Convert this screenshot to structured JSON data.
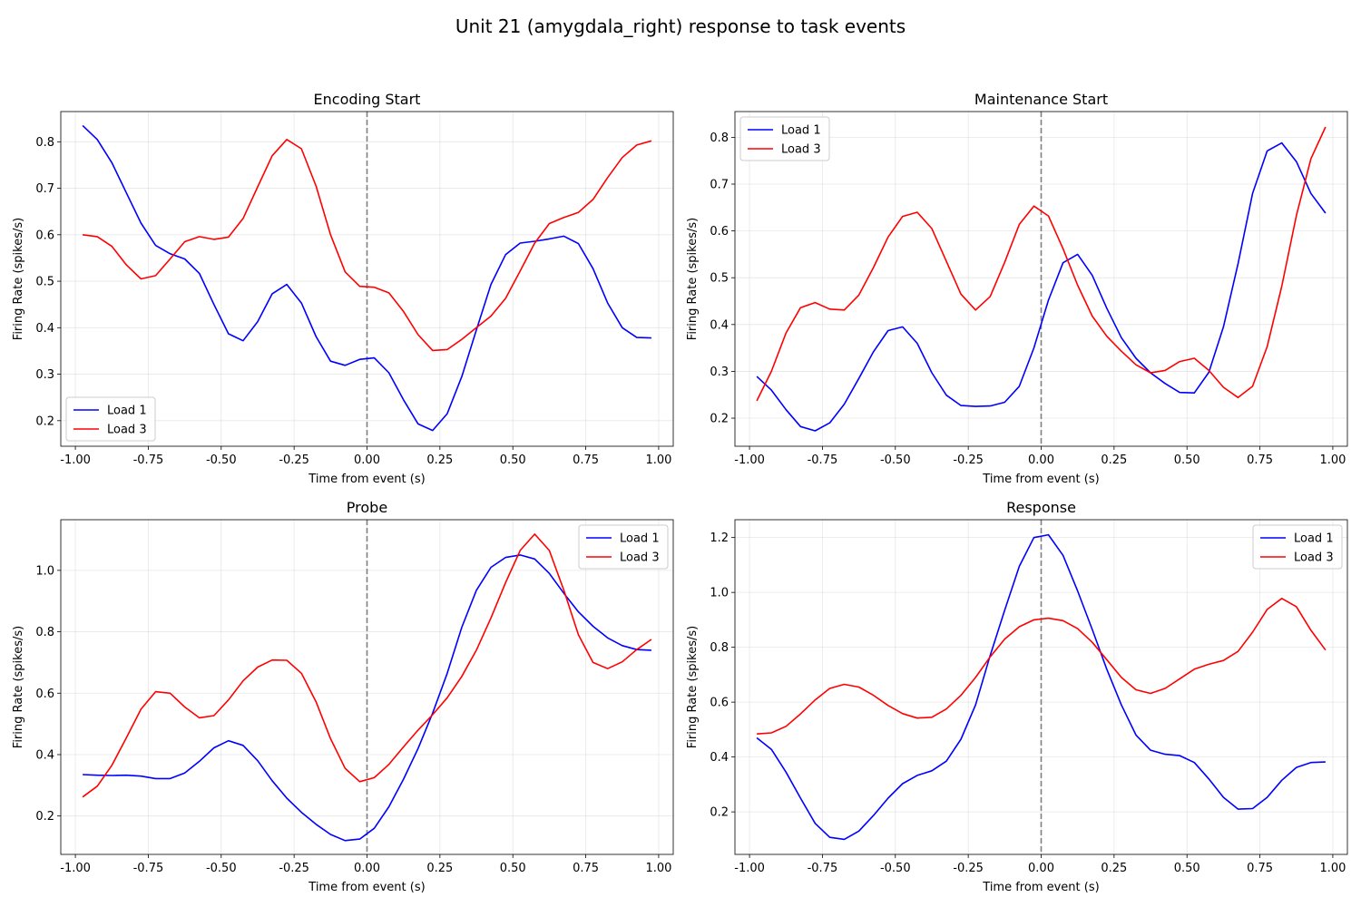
{
  "figure": {
    "title": "Unit 21 (amygdala_right) response to task events"
  },
  "series_colors": {
    "Load 1": "#0000ff",
    "Load 3": "#ff0000"
  },
  "event_line_color": "#808080",
  "chart_data": [
    {
      "type": "line",
      "title": "Encoding Start",
      "xlabel": "Time from event (s)",
      "ylabel": "Firing Rate (spikes/s)",
      "xlim": [
        -1.05,
        1.05
      ],
      "ylim": [
        0.145,
        0.865
      ],
      "xticks": [
        "-1.00",
        "-0.75",
        "-0.50",
        "-0.25",
        "0.00",
        "0.25",
        "0.50",
        "0.75",
        "1.00"
      ],
      "yticks": [
        "0.2",
        "0.3",
        "0.4",
        "0.5",
        "0.6",
        "0.7",
        "0.8"
      ],
      "grid": true,
      "legend": "lower left",
      "event_line_x": 0,
      "x": [
        -0.975,
        -0.925,
        -0.875,
        -0.825,
        -0.775,
        -0.725,
        -0.675,
        -0.625,
        -0.575,
        -0.525,
        -0.475,
        -0.425,
        -0.375,
        -0.325,
        -0.275,
        -0.225,
        -0.175,
        -0.125,
        -0.075,
        -0.025,
        0.025,
        0.075,
        0.125,
        0.175,
        0.225,
        0.275,
        0.325,
        0.375,
        0.425,
        0.475,
        0.525,
        0.575,
        0.625,
        0.675,
        0.725,
        0.775,
        0.825,
        0.875,
        0.925,
        0.975
      ],
      "series": [
        {
          "name": "Load 1",
          "values": [
            0.835,
            0.805,
            0.755,
            0.69,
            0.625,
            0.577,
            0.559,
            0.548,
            0.517,
            0.45,
            0.387,
            0.372,
            0.413,
            0.473,
            0.493,
            0.453,
            0.381,
            0.328,
            0.319,
            0.332,
            0.335,
            0.303,
            0.245,
            0.193,
            0.179,
            0.215,
            0.295,
            0.395,
            0.493,
            0.557,
            0.582,
            0.586,
            0.591,
            0.597,
            0.581,
            0.527,
            0.453,
            0.4,
            0.379,
            0.378
          ]
        },
        {
          "name": "Load 3",
          "values": [
            0.6,
            0.596,
            0.575,
            0.535,
            0.505,
            0.512,
            0.548,
            0.585,
            0.596,
            0.59,
            0.595,
            0.635,
            0.703,
            0.77,
            0.805,
            0.785,
            0.705,
            0.6,
            0.52,
            0.489,
            0.487,
            0.475,
            0.435,
            0.385,
            0.351,
            0.353,
            0.375,
            0.4,
            0.425,
            0.463,
            0.522,
            0.582,
            0.624,
            0.637,
            0.648,
            0.676,
            0.723,
            0.766,
            0.793,
            0.802
          ]
        }
      ]
    },
    {
      "type": "line",
      "title": "Maintenance Start",
      "xlabel": "Time from event (s)",
      "ylabel": "Firing Rate (spikes/s)",
      "xlim": [
        -1.05,
        1.05
      ],
      "ylim": [
        0.14,
        0.855
      ],
      "xticks": [
        "-1.00",
        "-0.75",
        "-0.50",
        "-0.25",
        "0.00",
        "0.25",
        "0.50",
        "0.75",
        "1.00"
      ],
      "yticks": [
        "0.2",
        "0.3",
        "0.4",
        "0.5",
        "0.6",
        "0.7",
        "0.8"
      ],
      "grid": true,
      "legend": "upper left",
      "event_line_x": 0,
      "x": [
        -0.975,
        -0.925,
        -0.875,
        -0.825,
        -0.775,
        -0.725,
        -0.675,
        -0.625,
        -0.575,
        -0.525,
        -0.475,
        -0.425,
        -0.375,
        -0.325,
        -0.275,
        -0.225,
        -0.175,
        -0.125,
        -0.075,
        -0.025,
        0.025,
        0.075,
        0.125,
        0.175,
        0.225,
        0.275,
        0.325,
        0.375,
        0.425,
        0.475,
        0.525,
        0.575,
        0.625,
        0.675,
        0.725,
        0.775,
        0.825,
        0.875,
        0.925,
        0.975
      ],
      "series": [
        {
          "name": "Load 1",
          "values": [
            0.289,
            0.26,
            0.218,
            0.182,
            0.173,
            0.19,
            0.23,
            0.285,
            0.342,
            0.387,
            0.395,
            0.36,
            0.297,
            0.249,
            0.227,
            0.225,
            0.226,
            0.234,
            0.268,
            0.35,
            0.452,
            0.532,
            0.55,
            0.505,
            0.435,
            0.372,
            0.328,
            0.297,
            0.274,
            0.255,
            0.254,
            0.298,
            0.395,
            0.53,
            0.68,
            0.771,
            0.788,
            0.748,
            0.68,
            0.638
          ]
        },
        {
          "name": "Load 3",
          "values": [
            0.237,
            0.3,
            0.382,
            0.436,
            0.447,
            0.433,
            0.431,
            0.463,
            0.522,
            0.587,
            0.631,
            0.64,
            0.605,
            0.535,
            0.465,
            0.431,
            0.46,
            0.533,
            0.614,
            0.653,
            0.632,
            0.562,
            0.484,
            0.418,
            0.375,
            0.343,
            0.314,
            0.297,
            0.302,
            0.321,
            0.328,
            0.302,
            0.266,
            0.244,
            0.268,
            0.353,
            0.482,
            0.633,
            0.754,
            0.822
          ]
        }
      ]
    },
    {
      "type": "line",
      "title": "Probe",
      "xlabel": "Time from event (s)",
      "ylabel": "Firing Rate (spikes/s)",
      "xlim": [
        -1.05,
        1.05
      ],
      "ylim": [
        0.075,
        1.165
      ],
      "xticks": [
        "-1.00",
        "-0.75",
        "-0.50",
        "-0.25",
        "0.00",
        "0.25",
        "0.50",
        "0.75",
        "1.00"
      ],
      "yticks": [
        "0.2",
        "0.4",
        "0.6",
        "0.8",
        "1.0"
      ],
      "grid": true,
      "legend": "upper right",
      "event_line_x": 0,
      "x": [
        -0.975,
        -0.925,
        -0.875,
        -0.825,
        -0.775,
        -0.725,
        -0.675,
        -0.625,
        -0.575,
        -0.525,
        -0.475,
        -0.425,
        -0.375,
        -0.325,
        -0.275,
        -0.225,
        -0.175,
        -0.125,
        -0.075,
        -0.025,
        0.025,
        0.075,
        0.125,
        0.175,
        0.225,
        0.275,
        0.325,
        0.375,
        0.425,
        0.475,
        0.525,
        0.575,
        0.625,
        0.675,
        0.725,
        0.775,
        0.825,
        0.875,
        0.925,
        0.975
      ],
      "series": [
        {
          "name": "Load 1",
          "values": [
            0.335,
            0.333,
            0.332,
            0.333,
            0.33,
            0.322,
            0.322,
            0.34,
            0.378,
            0.422,
            0.445,
            0.43,
            0.38,
            0.315,
            0.258,
            0.212,
            0.173,
            0.14,
            0.12,
            0.125,
            0.16,
            0.23,
            0.32,
            0.42,
            0.535,
            0.665,
            0.815,
            0.935,
            1.01,
            1.042,
            1.05,
            1.037,
            0.99,
            0.925,
            0.865,
            0.818,
            0.78,
            0.755,
            0.742,
            0.74
          ]
        },
        {
          "name": "Load 3",
          "values": [
            0.262,
            0.297,
            0.365,
            0.455,
            0.548,
            0.605,
            0.6,
            0.555,
            0.52,
            0.527,
            0.578,
            0.64,
            0.685,
            0.708,
            0.707,
            0.665,
            0.572,
            0.452,
            0.355,
            0.312,
            0.325,
            0.368,
            0.425,
            0.48,
            0.53,
            0.585,
            0.655,
            0.74,
            0.845,
            0.96,
            1.065,
            1.118,
            1.065,
            0.935,
            0.79,
            0.7,
            0.68,
            0.702,
            0.742,
            0.775
          ]
        }
      ]
    },
    {
      "type": "line",
      "title": "Response",
      "xlabel": "Time from event (s)",
      "ylabel": "Firing Rate (spikes/s)",
      "xlim": [
        -1.05,
        1.05
      ],
      "ylim": [
        0.045,
        1.265
      ],
      "xticks": [
        "-1.00",
        "-0.75",
        "-0.50",
        "-0.25",
        "0.00",
        "0.25",
        "0.50",
        "0.75",
        "1.00"
      ],
      "yticks": [
        "0.2",
        "0.4",
        "0.6",
        "0.8",
        "1.0",
        "1.2"
      ],
      "grid": true,
      "legend": "upper right",
      "event_line_x": 0,
      "x": [
        -0.975,
        -0.925,
        -0.875,
        -0.825,
        -0.775,
        -0.725,
        -0.675,
        -0.625,
        -0.575,
        -0.525,
        -0.475,
        -0.425,
        -0.375,
        -0.325,
        -0.275,
        -0.225,
        -0.175,
        -0.125,
        -0.075,
        -0.025,
        0.025,
        0.075,
        0.125,
        0.175,
        0.225,
        0.275,
        0.325,
        0.375,
        0.425,
        0.475,
        0.525,
        0.575,
        0.625,
        0.675,
        0.725,
        0.775,
        0.825,
        0.875,
        0.925,
        0.975
      ],
      "series": [
        {
          "name": "Load 1",
          "values": [
            0.47,
            0.428,
            0.345,
            0.25,
            0.158,
            0.107,
            0.1,
            0.13,
            0.187,
            0.25,
            0.303,
            0.333,
            0.35,
            0.385,
            0.465,
            0.59,
            0.77,
            0.935,
            1.095,
            1.2,
            1.21,
            1.135,
            1.005,
            0.865,
            0.72,
            0.59,
            0.48,
            0.425,
            0.41,
            0.405,
            0.38,
            0.32,
            0.253,
            0.21,
            0.212,
            0.253,
            0.315,
            0.362,
            0.38,
            0.382
          ]
        },
        {
          "name": "Load 3",
          "values": [
            0.484,
            0.488,
            0.512,
            0.557,
            0.608,
            0.65,
            0.665,
            0.655,
            0.625,
            0.588,
            0.558,
            0.542,
            0.545,
            0.575,
            0.625,
            0.69,
            0.765,
            0.83,
            0.875,
            0.9,
            0.906,
            0.897,
            0.868,
            0.818,
            0.755,
            0.69,
            0.645,
            0.632,
            0.65,
            0.685,
            0.72,
            0.738,
            0.752,
            0.785,
            0.855,
            0.938,
            0.978,
            0.948,
            0.862,
            0.79
          ]
        }
      ]
    }
  ]
}
